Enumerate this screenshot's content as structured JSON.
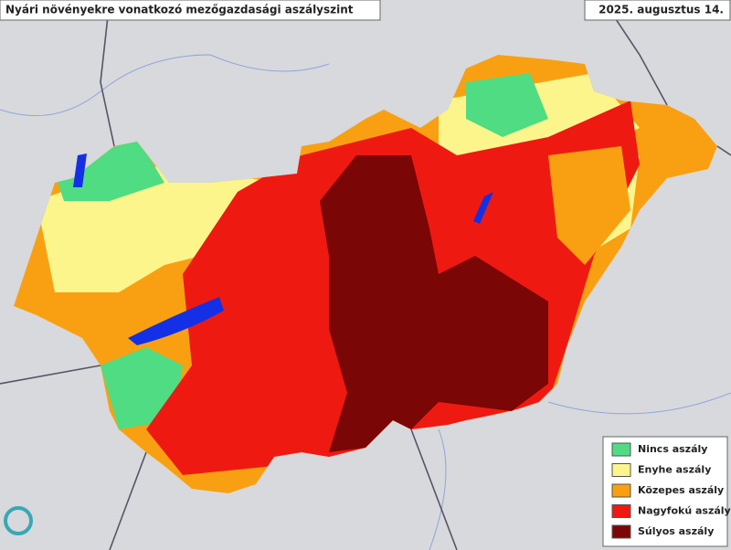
{
  "title": "Nyári növényekre vonatkozó mezőgazdasági aszályszint",
  "date": "2025. augusztus 14.",
  "legend": [
    {
      "label": "Nincs aszály",
      "color": "#4fdc82"
    },
    {
      "label": "Enyhe aszály",
      "color": "#fbf58c"
    },
    {
      "label": "Közepes aszály",
      "color": "#f9a012"
    },
    {
      "label": "Nagyfokú aszály",
      "color": "#ee1a12"
    },
    {
      "label": "Súlyos aszály",
      "color": "#7a0606"
    }
  ]
}
